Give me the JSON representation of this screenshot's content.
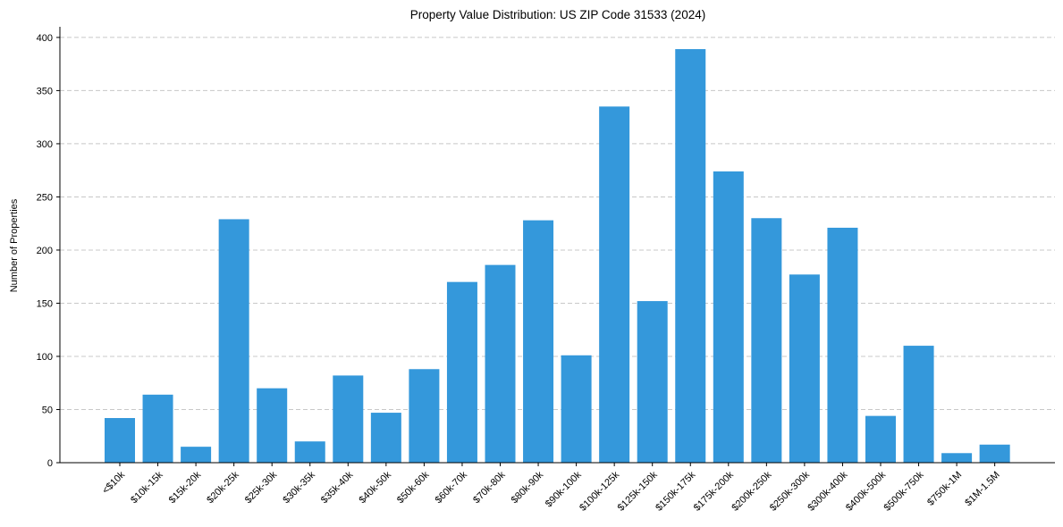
{
  "chart_data": {
    "type": "bar",
    "title": "Property Value Distribution: US ZIP Code 31533 (2024)",
    "xlabel": "",
    "ylabel": "Number of Properties",
    "ylim": [
      0,
      410
    ],
    "yticks": [
      0,
      50,
      100,
      150,
      200,
      250,
      300,
      350,
      400
    ],
    "grid": "y-dashed",
    "bar_color": "#3498db",
    "categories": [
      "<$10k",
      "$10k-15k",
      "$15k-20k",
      "$20k-25k",
      "$25k-30k",
      "$30k-35k",
      "$35k-40k",
      "$40k-50k",
      "$50k-60k",
      "$60k-70k",
      "$70k-80k",
      "$80k-90k",
      "$90k-100k",
      "$100k-125k",
      "$125k-150k",
      "$150k-175k",
      "$175k-200k",
      "$200k-250k",
      "$250k-300k",
      "$300k-400k",
      "$400k-500k",
      "$500k-750k",
      "$750k-1M",
      "$1M-1.5M"
    ],
    "values": [
      42,
      64,
      15,
      229,
      70,
      20,
      82,
      47,
      88,
      170,
      186,
      228,
      101,
      335,
      152,
      389,
      274,
      230,
      177,
      221,
      44,
      110,
      9,
      17
    ]
  }
}
